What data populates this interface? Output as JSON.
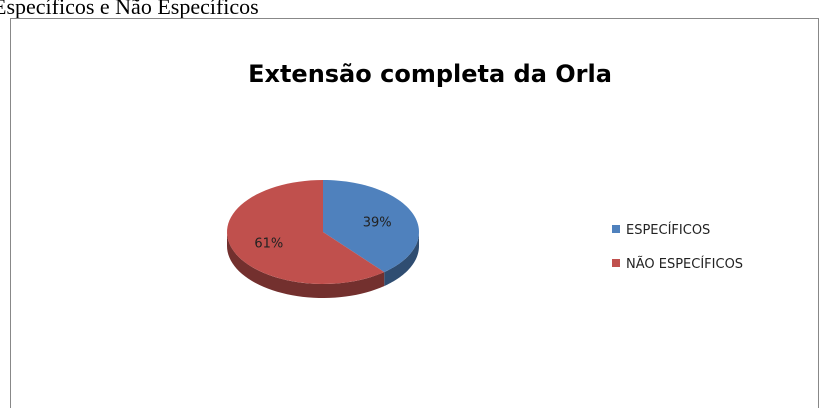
{
  "document_text": "Específicos e Não Específicos",
  "chart_data": {
    "type": "pie",
    "title": "Extensão completa da Orla",
    "categories": [
      "ESPECÍFICOS",
      "NÃO ESPECÍFICOS"
    ],
    "values": [
      39,
      61
    ],
    "value_labels": [
      "39%",
      "61%"
    ],
    "colors": [
      "#4f81bd",
      "#c0504d"
    ],
    "legend": "right",
    "three_d": true
  }
}
